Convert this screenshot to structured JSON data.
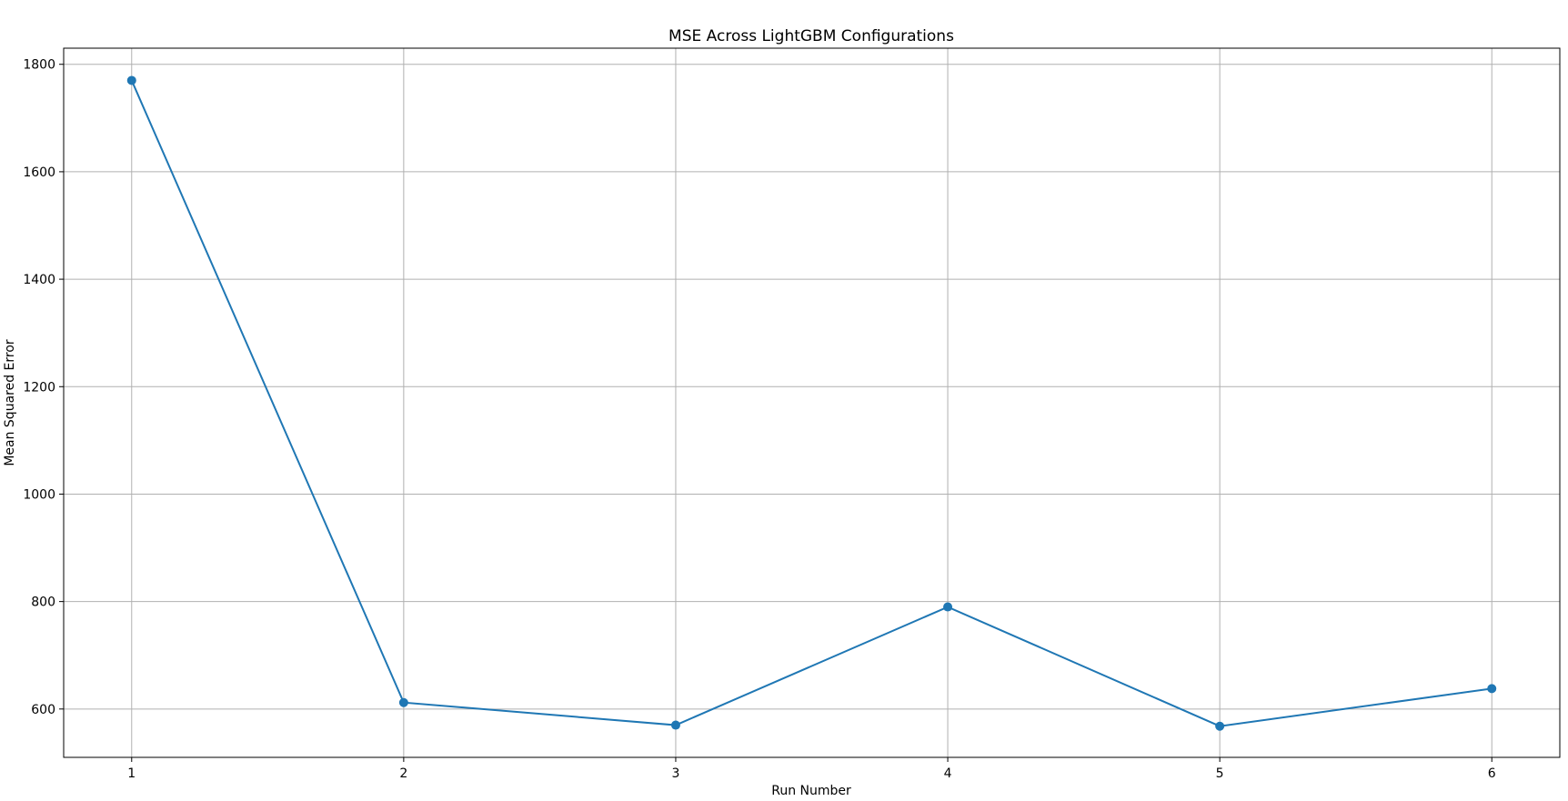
{
  "chart_data": {
    "type": "line",
    "title": "MSE Across LightGBM Configurations",
    "xlabel": "Run Number",
    "ylabel": "Mean Squared Error",
    "x": [
      1,
      2,
      3,
      4,
      5,
      6
    ],
    "xticks": [
      "1",
      "2",
      "3",
      "4",
      "5",
      "6"
    ],
    "xlim": [
      0.75,
      6.25
    ],
    "yticks": [
      600,
      800,
      1000,
      1200,
      1400,
      1600,
      1800
    ],
    "ylim": [
      510,
      1830
    ],
    "grid": true,
    "legend": "none",
    "series": [
      {
        "values": [
          1770,
          612,
          570,
          790,
          568,
          638
        ],
        "color": "#1f77b4",
        "marker": "circle"
      }
    ]
  }
}
